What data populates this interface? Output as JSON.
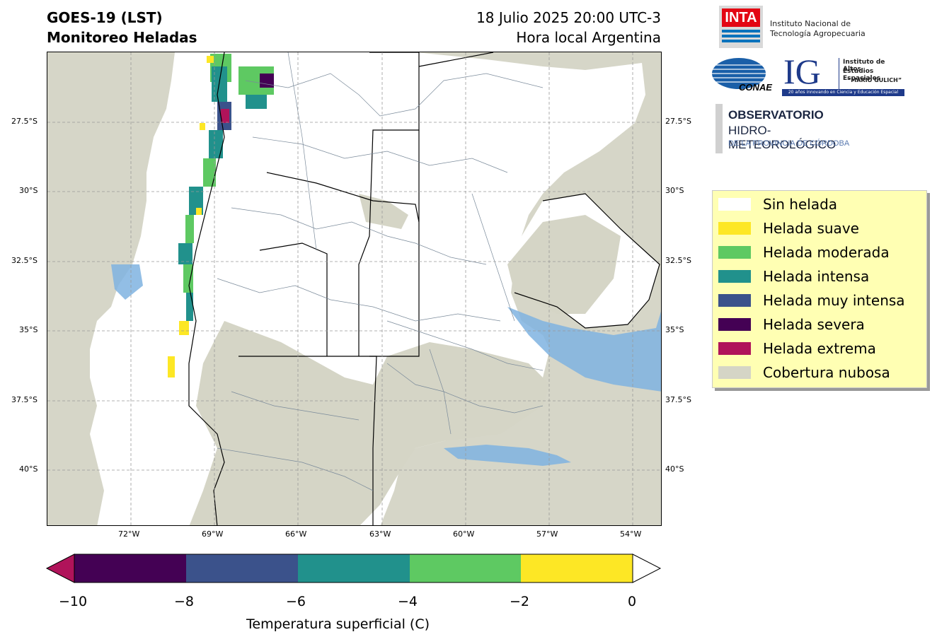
{
  "header": {
    "title_line1": "GOES-19 (LST)",
    "title_line2": "Monitoreo Heladas",
    "date_line1": "18 Julio 2025 20:00 UTC-3",
    "date_line2": "Hora local Argentina"
  },
  "logos": {
    "inta": {
      "mark": "INTA",
      "line1": "Instituto Nacional de",
      "line2": "Tecnología Agropecuaria"
    },
    "conae": {
      "mark": "CONAE"
    },
    "ig": {
      "mark": "IG",
      "line1": "Instituto de Altos",
      "line2": "Estudios Espaciales",
      "line3": "“MARIO GULICH”",
      "tagline": "20 años innovando en Ciencia y Educación Espacial"
    },
    "observatorio": {
      "line1": "OBSERVATORIO",
      "line2": "HIDRO-METEOROLÓGICO",
      "line3": "DE LA PROVINCIA DE CÓRDOBA"
    }
  },
  "map": {
    "lat_ticks": [
      "27.5°S",
      "30°S",
      "32.5°S",
      "35°S",
      "37.5°S",
      "40°S"
    ],
    "lon_ticks": [
      "72°W",
      "69°W",
      "66°W",
      "63°W",
      "60°W",
      "57°W",
      "54°W"
    ],
    "colors": {
      "ocean": "#d6d6c8",
      "land": "#ffffff",
      "cloud": "#d5d5c6",
      "water": "#7fb3e0"
    }
  },
  "legend": {
    "items": [
      {
        "label": "Sin helada",
        "color": "#ffffff"
      },
      {
        "label": "Helada suave",
        "color": "#fde725"
      },
      {
        "label": "Helada moderada",
        "color": "#5ec962"
      },
      {
        "label": "Helada intensa",
        "color": "#21918c"
      },
      {
        "label": "Helada muy intensa",
        "color": "#3b528b"
      },
      {
        "label": "Helada severa",
        "color": "#440154"
      },
      {
        "label": "Helada extrema",
        "color": "#b0135a"
      },
      {
        "label": "Cobertura nubosa",
        "color": "#d5d5c6"
      }
    ]
  },
  "colorbar": {
    "ticks": [
      "−10",
      "−8",
      "−6",
      "−4",
      "−2",
      "0"
    ],
    "label": "Temperatura superficial (C)",
    "under_color": "#b0135a",
    "over_color": "#ffffff",
    "segments": [
      "#440154",
      "#3b528b",
      "#21918c",
      "#5ec962",
      "#fde725"
    ]
  }
}
